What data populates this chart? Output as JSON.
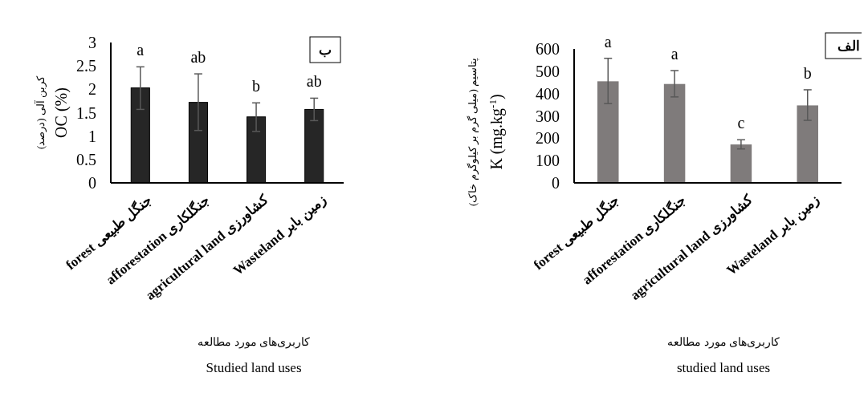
{
  "chart_data": [
    {
      "type": "bar",
      "ylabel": "کربن آلی (درصد)\nOC (%)",
      "xlabel": "کاربری‌های مورد مطالعه\nStudied land uses",
      "categories": [
        "forest جنگل طبیعی",
        "afforestation جنگلکاری",
        "agricultural land کشاورزی",
        "Wasteland زمین بایر"
      ],
      "values": [
        2.03,
        1.72,
        1.41,
        1.57
      ],
      "errors": [
        [
          1.57,
          2.48
        ],
        [
          1.12,
          2.33
        ],
        [
          1.1,
          1.71
        ],
        [
          1.33,
          1.81
        ]
      ],
      "color": "#262626",
      "ylim": [
        0,
        3
      ],
      "yticks": [
        0,
        0.5,
        1,
        1.5,
        2,
        2.5,
        3
      ],
      "annotations": [
        "ب",
        "a",
        "ab",
        "b",
        "ab"
      ]
    },
    {
      "type": "bar",
      "ylabel": "پتاسیم (میلی گرم بر کیلوگرم خاک)\nK (mg.kg$^{-1}$)",
      "xlabel": "کاربری‌های مورد مطالعه\nstudied land uses",
      "categories": [
        "forest جنگل طبیعی",
        "afforestation جنگلکاری",
        "agricultural land کشاورزی",
        "Wasteland زمین بایر"
      ],
      "values": [
        455,
        443,
        172,
        347
      ],
      "errors": [
        [
          355,
          558
        ],
        [
          385,
          503
        ],
        [
          152,
          193
        ],
        [
          280,
          417
        ]
      ],
      "color": "#7f7b7b",
      "ylim": [
        0,
        600
      ],
      "yticks": [
        0,
        100,
        200,
        300,
        400,
        500,
        600
      ],
      "annotations": [
        "الف",
        "a",
        "a",
        "c",
        "b"
      ]
    }
  ]
}
